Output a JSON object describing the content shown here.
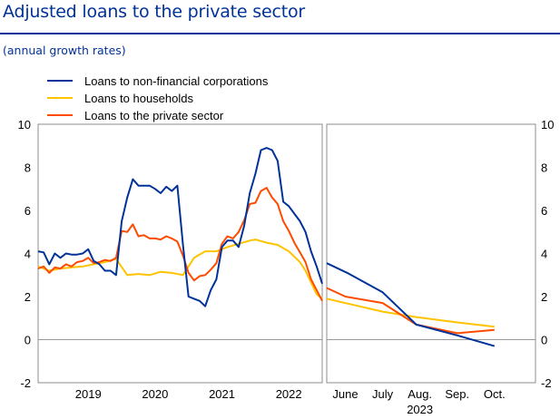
{
  "header": {
    "title": "Adjusted loans to the private sector",
    "subtitle": "(annual growth rates)"
  },
  "chart_data": {
    "type": "line",
    "title": "Adjusted loans to the private sector",
    "subtitle": "(annual growth rates)",
    "ylim": [
      -2,
      10
    ],
    "yticks": [
      "-2",
      "0",
      "2",
      "4",
      "6",
      "8",
      "10"
    ],
    "grid": false,
    "legend": "top-left",
    "colors": {
      "nfc": "#003299",
      "households": "#ffc300",
      "private": "#ff4b00",
      "zero_line": "#999999",
      "panel_border": "#8c8c8c"
    },
    "legend_entries": [
      {
        "key": "nfc",
        "label": "Loans to non-financial corporations"
      },
      {
        "key": "households",
        "label": "Loans to households"
      },
      {
        "key": "private",
        "label": "Loans to the private sector"
      }
    ],
    "left_panel": {
      "x_range": [
        2018.75,
        2023.0
      ],
      "x_ticks": [
        {
          "label": "2019",
          "x": 2019.5
        },
        {
          "label": "2020",
          "x": 2020.5
        },
        {
          "label": "2021",
          "x": 2021.5
        },
        {
          "label": "2022",
          "x": 2022.5
        }
      ],
      "series": {
        "nfc": {
          "x": [
            2018.75,
            2018.833,
            2018.917,
            2019.0,
            2019.083,
            2019.167,
            2019.25,
            2019.333,
            2019.417,
            2019.5,
            2019.583,
            2019.667,
            2019.75,
            2019.833,
            2019.917,
            2020.0,
            2020.083,
            2020.167,
            2020.25,
            2020.333,
            2020.417,
            2020.5,
            2020.583,
            2020.667,
            2020.75,
            2020.833,
            2020.917,
            2021.0,
            2021.083,
            2021.167,
            2021.25,
            2021.333,
            2021.417,
            2021.5,
            2021.583,
            2021.667,
            2021.75,
            2021.833,
            2021.917,
            2022.0,
            2022.083,
            2022.167,
            2022.25,
            2022.333,
            2022.417,
            2022.5,
            2022.583,
            2022.667,
            2022.75,
            2022.833,
            2022.917,
            2023.0
          ],
          "values": [
            4.1,
            4.05,
            3.5,
            4.0,
            3.8,
            4.0,
            3.95,
            3.95,
            4.0,
            4.2,
            3.65,
            3.5,
            3.2,
            3.2,
            3.0,
            5.5,
            6.6,
            7.45,
            7.15,
            7.15,
            7.15,
            7.0,
            6.8,
            7.1,
            6.9,
            7.15,
            4.4,
            2.0,
            1.9,
            1.8,
            1.55,
            2.3,
            2.8,
            4.3,
            4.6,
            4.6,
            4.3,
            5.3,
            6.8,
            7.7,
            8.8,
            8.9,
            8.8,
            8.3,
            6.4,
            6.2,
            5.85,
            5.5,
            5.0,
            4.1,
            3.4,
            2.6
          ]
        },
        "households": {
          "x": [
            2018.75,
            2018.917,
            2019.083,
            2019.25,
            2019.417,
            2019.583,
            2019.75,
            2019.917,
            2020.083,
            2020.25,
            2020.417,
            2020.583,
            2020.75,
            2020.917,
            2021.0,
            2021.083,
            2021.25,
            2021.417,
            2021.583,
            2021.75,
            2021.917,
            2022.0,
            2022.167,
            2022.333,
            2022.5,
            2022.667,
            2022.75,
            2022.917,
            2023.0
          ],
          "values": [
            3.4,
            3.2,
            3.3,
            3.35,
            3.4,
            3.5,
            3.6,
            3.75,
            3.0,
            3.05,
            3.0,
            3.15,
            3.1,
            3.0,
            3.4,
            3.8,
            4.1,
            4.1,
            4.3,
            4.45,
            4.6,
            4.65,
            4.5,
            4.4,
            4.1,
            3.6,
            3.2,
            2.1,
            1.9
          ]
        },
        "private": {
          "x": [
            2018.75,
            2018.833,
            2018.917,
            2019.0,
            2019.083,
            2019.167,
            2019.25,
            2019.333,
            2019.417,
            2019.5,
            2019.583,
            2019.667,
            2019.75,
            2019.833,
            2019.917,
            2020.0,
            2020.083,
            2020.167,
            2020.25,
            2020.333,
            2020.417,
            2020.5,
            2020.583,
            2020.667,
            2020.75,
            2020.833,
            2020.917,
            2021.0,
            2021.083,
            2021.167,
            2021.25,
            2021.333,
            2021.417,
            2021.5,
            2021.583,
            2021.667,
            2021.75,
            2021.833,
            2021.917,
            2022.0,
            2022.083,
            2022.167,
            2022.25,
            2022.333,
            2022.417,
            2022.5,
            2022.583,
            2022.667,
            2022.75,
            2022.833,
            2022.917,
            2023.0
          ],
          "values": [
            3.3,
            3.4,
            3.1,
            3.35,
            3.3,
            3.5,
            3.4,
            3.6,
            3.65,
            3.8,
            3.55,
            3.6,
            3.7,
            3.65,
            3.8,
            5.05,
            5.0,
            5.35,
            4.8,
            4.85,
            4.7,
            4.7,
            4.65,
            4.8,
            4.7,
            4.55,
            3.9,
            3.1,
            2.75,
            2.95,
            3.0,
            3.25,
            3.55,
            4.45,
            4.8,
            4.7,
            5.0,
            5.55,
            6.3,
            6.35,
            6.9,
            7.05,
            6.6,
            6.3,
            5.5,
            5.05,
            4.5,
            4.05,
            3.6,
            2.8,
            2.3,
            1.8
          ]
        }
      }
    },
    "right_panel": {
      "x_range": [
        0,
        5.6
      ],
      "x_ticks": [
        {
          "label": "June",
          "x": 0.5
        },
        {
          "label": "July",
          "x": 1.5
        },
        {
          "label": "Aug.",
          "x": 2.5
        },
        {
          "label": "Sep.",
          "x": 3.5
        },
        {
          "label": "Oct.",
          "x": 4.5
        }
      ],
      "year_label": "2023",
      "year_x": 2.5,
      "series": {
        "nfc": {
          "x": [
            0,
            0.55,
            1.5,
            2.4,
            3.5,
            4.5
          ],
          "values": [
            3.55,
            3.1,
            2.2,
            0.7,
            0.2,
            -0.3
          ]
        },
        "households": {
          "x": [
            0,
            1.5,
            2.4,
            3.5,
            4.5
          ],
          "values": [
            1.9,
            1.3,
            1.05,
            0.8,
            0.6
          ]
        },
        "private": {
          "x": [
            0,
            0.5,
            1.5,
            2.4,
            3.5,
            4.5
          ],
          "values": [
            2.4,
            2.0,
            1.7,
            0.7,
            0.3,
            0.45
          ]
        }
      }
    }
  }
}
